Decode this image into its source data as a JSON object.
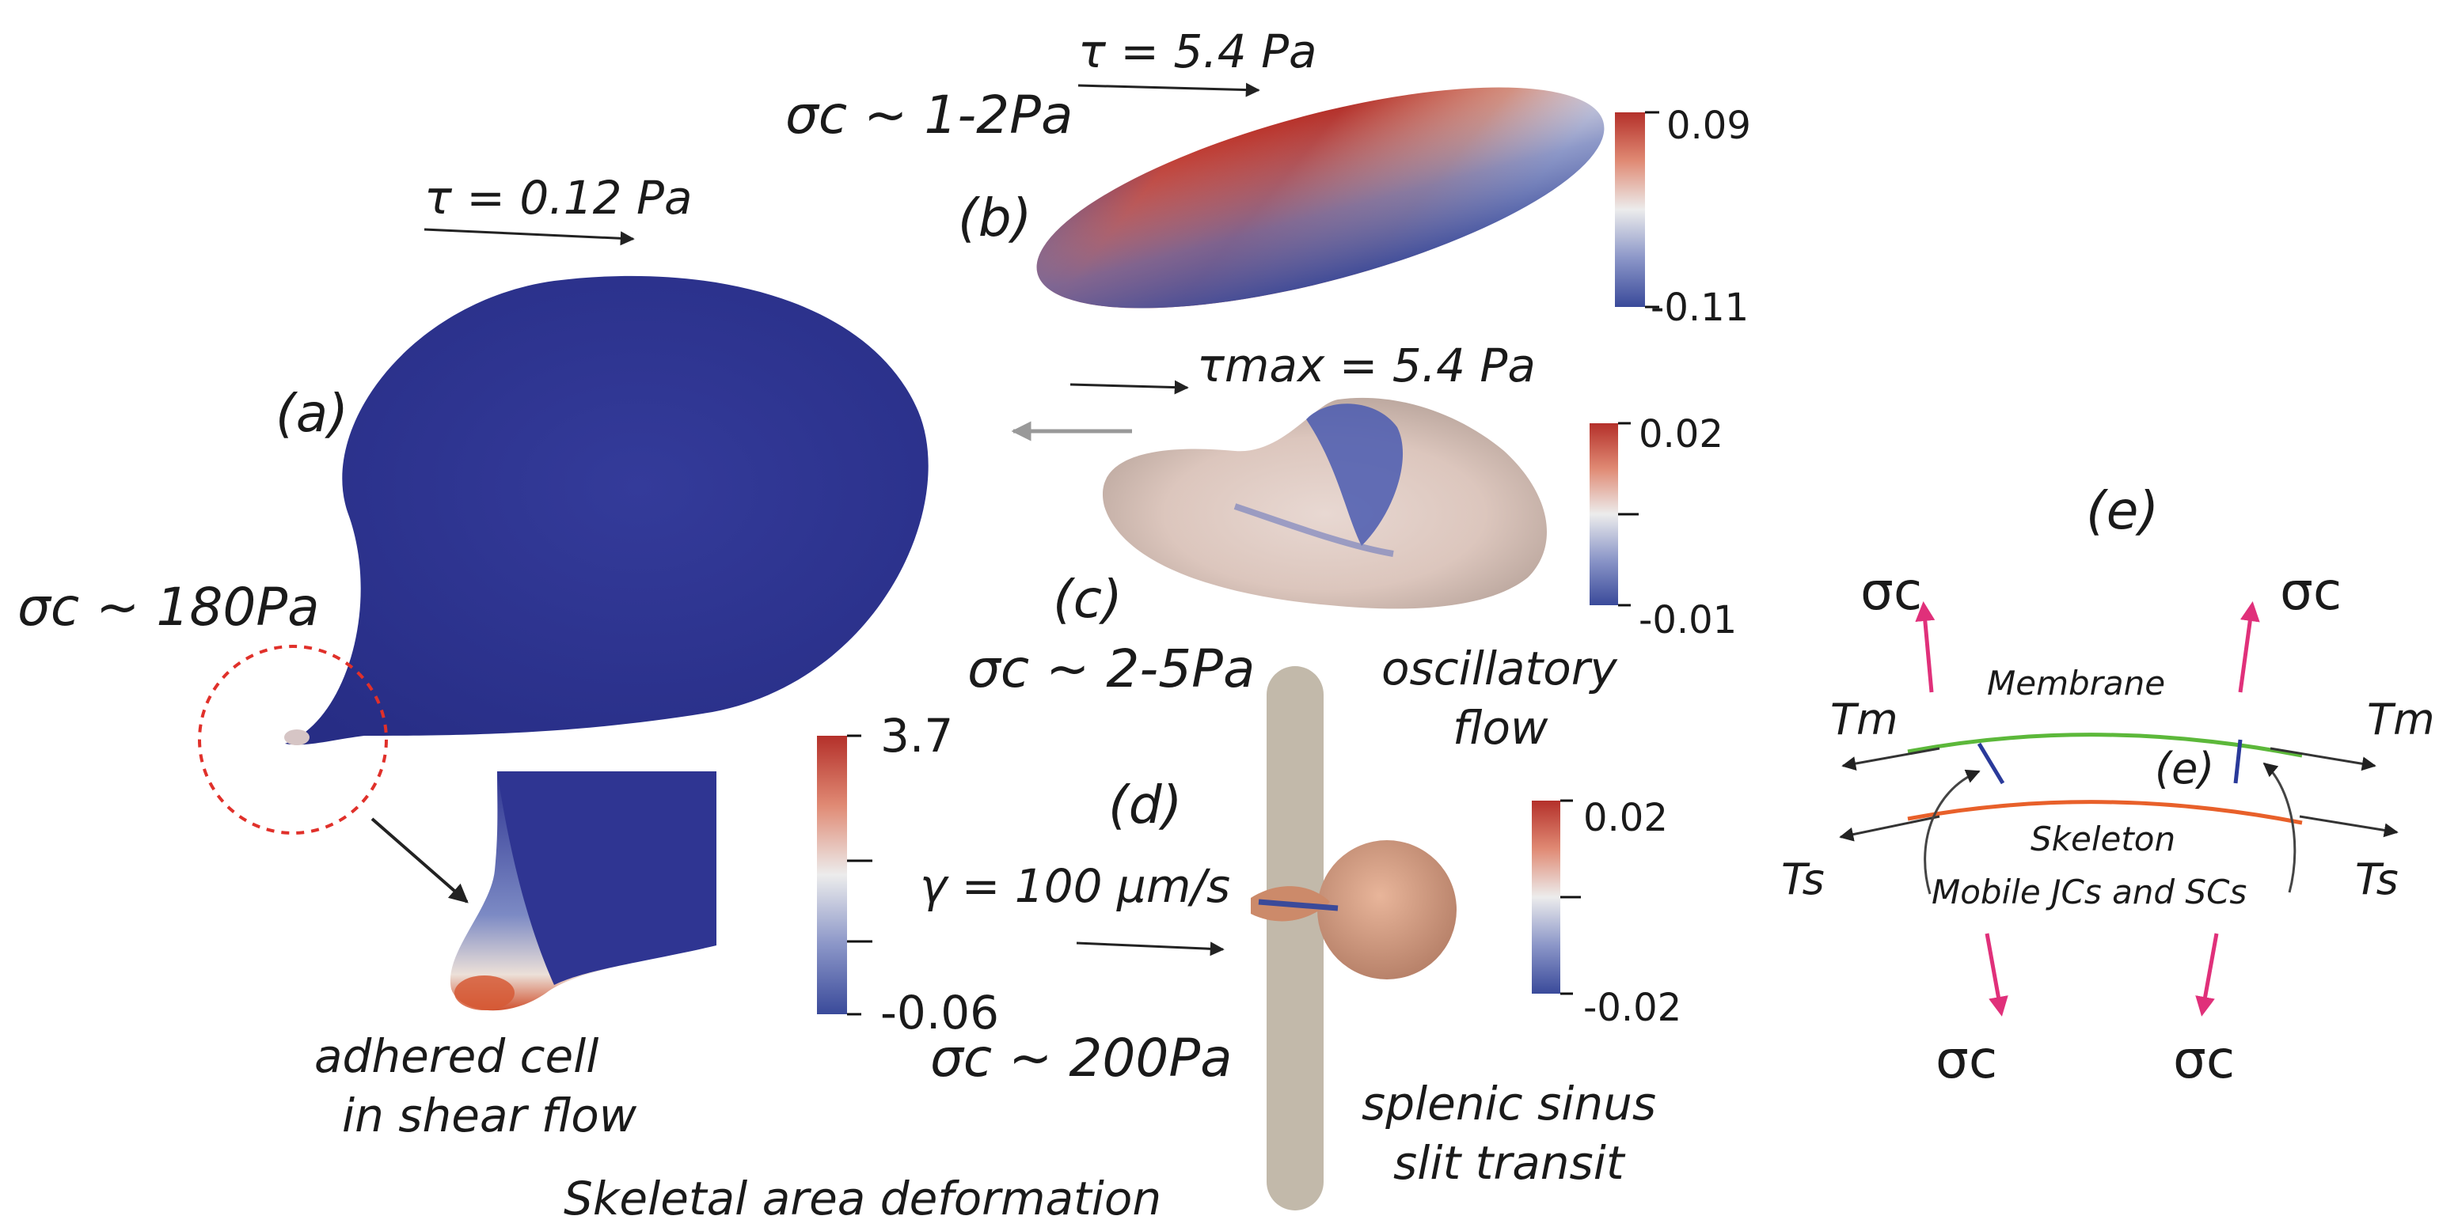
{
  "panels": {
    "a": {
      "label": "(a)",
      "shear": "τ = 0.12 Pa",
      "stress": "σc ~ 180Pa",
      "caption_line1": "adhered cell",
      "caption_line2": "in shear flow"
    },
    "b": {
      "label": "(b)",
      "shear": "τ = 5.4 Pa",
      "stress": "σc ~ 1-2Pa",
      "colorbar_max": "0.09",
      "colorbar_min": "-0.11"
    },
    "c": {
      "label": "(c)",
      "shear": "τmax = 5.4 Pa",
      "stress": "σc ~ 2-5Pa",
      "caption_line1": "oscillatory",
      "caption_line2": "flow",
      "colorbar_max": "0.02",
      "colorbar_min": "-0.01"
    },
    "d": {
      "label": "(d)",
      "velocity": "γ = 100 μm/s",
      "stress": "σc ~ 200Pa",
      "caption_line1": "splenic sinus",
      "caption_line2": "slit transit",
      "colorbar_max": "0.02",
      "colorbar_min": "-0.02"
    },
    "e": {
      "label": "(e)",
      "inner_label": "(e)",
      "membrane": "Membrane",
      "skeleton": "Skeleton",
      "mobile": "Mobile JCs and SCs",
      "tension_membrane": "Tm",
      "tension_skeleton": "Ts",
      "stress_symbol": "σc"
    }
  },
  "main_colorbar": {
    "max": "3.7",
    "min": "-0.06"
  },
  "bottom_caption": "Skeletal area deformation",
  "colors": {
    "cell_blue": "#2f3592",
    "colormap_red": "#b4302a",
    "colormap_white": "#ececec",
    "membrane_green": "#5cb83a",
    "skeleton_orange": "#e8602a",
    "stress_arrow_pink": "#e0307a",
    "dashed_circle_red": "#e0302a",
    "slit_gray": "#c2b9aa"
  }
}
